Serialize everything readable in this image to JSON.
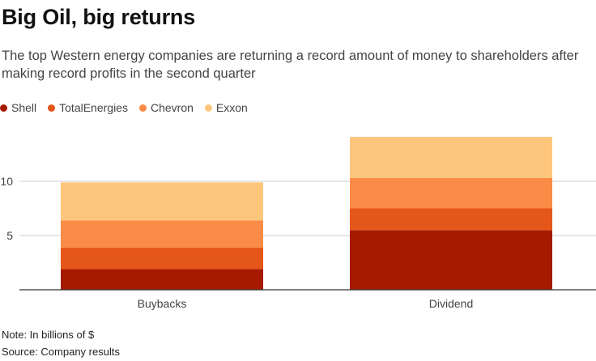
{
  "header": {
    "title": "Big Oil, big returns",
    "subtitle": "The top Western energy companies are returning a record amount of money to shareholders after making record profits in the second quarter"
  },
  "footer": {
    "note": "Note: In billions of $",
    "source": "Source: Company results"
  },
  "colors": {
    "Shell": "#a61b00",
    "TotalEnergies": "#e5561a",
    "Chevron": "#fb8c48",
    "Exxon": "#fec67c",
    "axis": "#333333",
    "grid": "#cccccc"
  },
  "chart_data": {
    "type": "bar",
    "stacked": true,
    "categories": [
      "Buybacks",
      "Dividend"
    ],
    "series": [
      {
        "name": "Shell",
        "values": [
          1.9,
          5.5
        ]
      },
      {
        "name": "TotalEnergies",
        "values": [
          2.0,
          2.0
        ]
      },
      {
        "name": "Chevron",
        "values": [
          2.5,
          2.8
        ]
      },
      {
        "name": "Exxon",
        "values": [
          3.5,
          3.8
        ]
      }
    ],
    "yticks": [
      5,
      10
    ],
    "ylim": [
      0,
      14.5
    ],
    "grid": true,
    "legend": "top-left"
  }
}
